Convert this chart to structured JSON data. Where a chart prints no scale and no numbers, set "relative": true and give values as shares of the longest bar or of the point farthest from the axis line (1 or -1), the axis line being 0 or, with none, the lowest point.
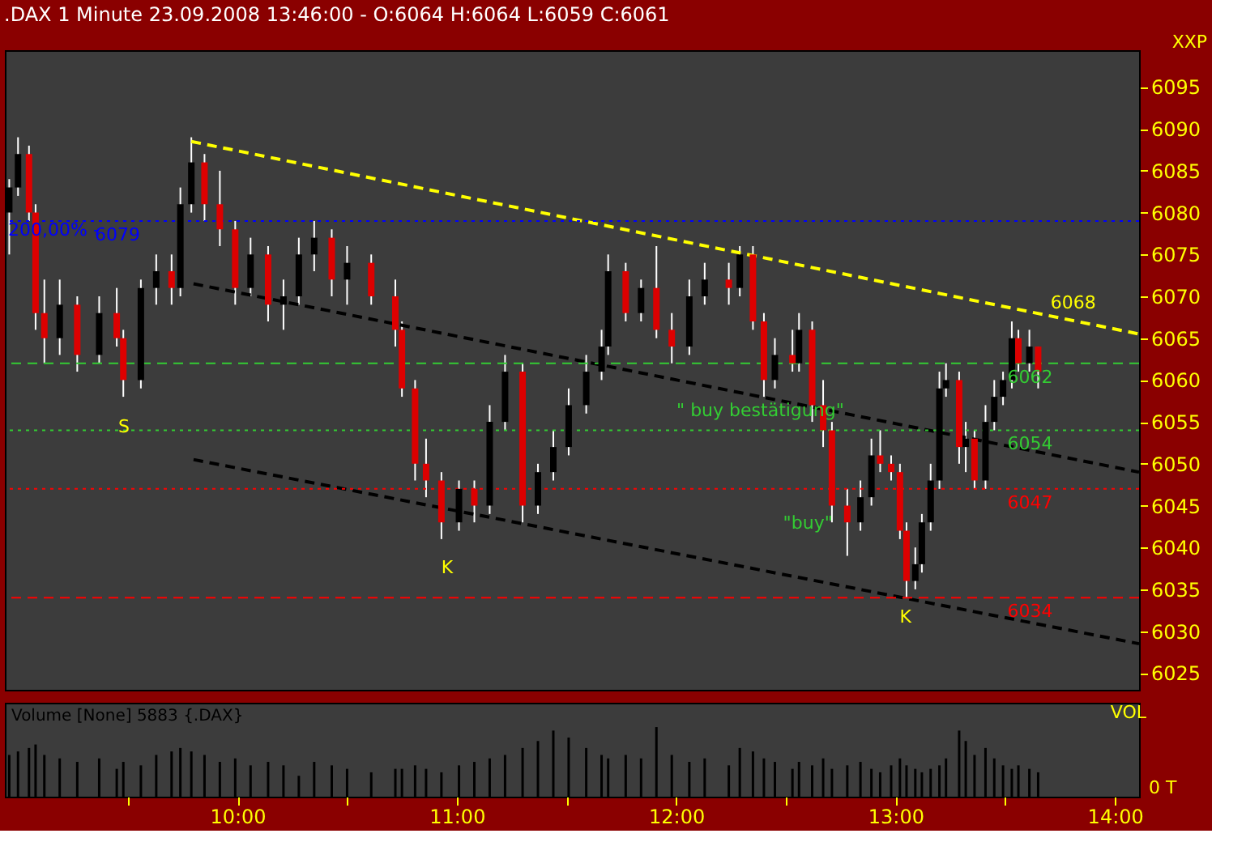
{
  "chart_data": [
    {
      "type": "candlestick",
      "title": ".DAX 1 Minute  23.09.2008 13:46:00 - O:6064 H:6064 L:6059 C:6061",
      "ylabel": "XXP",
      "tick_labels": "y",
      "grid": false,
      "x": [
        8.96,
        9.0,
        9.05,
        9.08,
        9.12,
        9.19,
        9.27,
        9.37,
        9.45,
        9.48,
        9.56,
        9.63,
        9.7,
        9.74,
        9.79,
        9.85,
        9.92,
        9.99,
        10.06,
        10.14,
        10.21,
        10.28,
        10.35,
        10.43,
        10.5,
        10.61,
        10.72,
        10.75,
        10.81,
        10.86,
        10.93,
        11.01,
        11.08,
        11.15,
        11.22,
        11.3,
        11.37,
        11.44,
        11.51,
        11.59,
        11.66,
        11.69,
        11.77,
        11.84,
        11.91,
        11.98,
        12.06,
        12.13,
        12.24,
        12.29,
        12.35,
        12.4,
        12.45,
        12.53,
        12.56,
        12.62,
        12.67,
        12.71,
        12.78,
        12.84,
        12.89,
        12.93,
        12.98,
        13.02,
        13.05,
        13.09,
        13.12,
        13.16,
        13.2,
        13.23,
        13.29,
        13.32,
        13.36,
        13.41,
        13.45,
        13.49,
        13.53,
        13.56,
        13.61,
        13.65
      ],
      "ohlc": [
        [
          6080,
          6084,
          6075,
          6083
        ],
        [
          6083,
          6089,
          6082,
          6087
        ],
        [
          6087,
          6088,
          6079,
          6080
        ],
        [
          6080,
          6081,
          6066,
          6068
        ],
        [
          6068,
          6072,
          6062,
          6065
        ],
        [
          6065,
          6072,
          6063,
          6069
        ],
        [
          6069,
          6070,
          6061,
          6063
        ],
        [
          6063,
          6070,
          6062,
          6068
        ],
        [
          6068,
          6071,
          6064,
          6065
        ],
        [
          6065,
          6066,
          6058,
          6060
        ],
        [
          6060,
          6072,
          6059,
          6071
        ],
        [
          6071,
          6075,
          6069,
          6073
        ],
        [
          6073,
          6075,
          6069,
          6071
        ],
        [
          6071,
          6083,
          6070,
          6081
        ],
        [
          6081,
          6089,
          6080,
          6086
        ],
        [
          6086,
          6087,
          6079,
          6081
        ],
        [
          6081,
          6085,
          6076,
          6078
        ],
        [
          6078,
          6079,
          6069,
          6071
        ],
        [
          6071,
          6077,
          6070,
          6075
        ],
        [
          6075,
          6076,
          6067,
          6069
        ],
        [
          6069,
          6072,
          6066,
          6070
        ],
        [
          6070,
          6077,
          6069,
          6075
        ],
        [
          6075,
          6079,
          6073,
          6077
        ],
        [
          6077,
          6078,
          6070,
          6072
        ],
        [
          6072,
          6076,
          6069,
          6074
        ],
        [
          6074,
          6075,
          6069,
          6070
        ],
        [
          6070,
          6072,
          6064,
          6066
        ],
        [
          6066,
          6067,
          6058,
          6059
        ],
        [
          6059,
          6060,
          6048,
          6050
        ],
        [
          6050,
          6053,
          6046,
          6048
        ],
        [
          6048,
          6049,
          6041,
          6043
        ],
        [
          6043,
          6048,
          6042,
          6047
        ],
        [
          6047,
          6048,
          6043,
          6045
        ],
        [
          6045,
          6057,
          6044,
          6055
        ],
        [
          6055,
          6063,
          6054,
          6061
        ],
        [
          6061,
          6062,
          6043,
          6045
        ],
        [
          6045,
          6050,
          6044,
          6049
        ],
        [
          6049,
          6054,
          6048,
          6052
        ],
        [
          6052,
          6059,
          6051,
          6057
        ],
        [
          6057,
          6063,
          6056,
          6061
        ],
        [
          6061,
          6066,
          6060,
          6064
        ],
        [
          6064,
          6075,
          6063,
          6073
        ],
        [
          6073,
          6074,
          6067,
          6068
        ],
        [
          6068,
          6072,
          6067,
          6071
        ],
        [
          6071,
          6076,
          6065,
          6066
        ],
        [
          6066,
          6068,
          6062,
          6064
        ],
        [
          6064,
          6072,
          6063,
          6070
        ],
        [
          6070,
          6074,
          6069,
          6072
        ],
        [
          6072,
          6074,
          6069,
          6071
        ],
        [
          6071,
          6076,
          6070,
          6075
        ],
        [
          6075,
          6076,
          6066,
          6067
        ],
        [
          6067,
          6068,
          6058,
          6060
        ],
        [
          6060,
          6065,
          6059,
          6063
        ],
        [
          6063,
          6066,
          6061,
          6062
        ],
        [
          6062,
          6068,
          6061,
          6066
        ],
        [
          6066,
          6067,
          6055,
          6057
        ],
        [
          6057,
          6060,
          6052,
          6054
        ],
        [
          6054,
          6055,
          6043,
          6045
        ],
        [
          6045,
          6047,
          6039,
          6043
        ],
        [
          6043,
          6048,
          6042,
          6046
        ],
        [
          6046,
          6053,
          6045,
          6051
        ],
        [
          6051,
          6054,
          6049,
          6050
        ],
        [
          6050,
          6051,
          6048,
          6049
        ],
        [
          6049,
          6050,
          6041,
          6042
        ],
        [
          6042,
          6043,
          6034,
          6036
        ],
        [
          6036,
          6040,
          6035,
          6038
        ],
        [
          6038,
          6044,
          6037,
          6043
        ],
        [
          6043,
          6050,
          6042,
          6048
        ],
        [
          6048,
          6061,
          6047,
          6059
        ],
        [
          6059,
          6062,
          6058,
          6060
        ],
        [
          6060,
          6061,
          6050,
          6052
        ],
        [
          6052,
          6055,
          6049,
          6053
        ],
        [
          6053,
          6054,
          6047,
          6048
        ],
        [
          6048,
          6057,
          6047,
          6055
        ],
        [
          6055,
          6060,
          6054,
          6058
        ],
        [
          6058,
          6061,
          6057,
          6060
        ],
        [
          6060,
          6067,
          6059,
          6065
        ],
        [
          6065,
          6066,
          6061,
          6062
        ],
        [
          6062,
          6066,
          6061,
          6064
        ],
        [
          6064,
          6064,
          6059,
          6061
        ]
      ],
      "series": [
        {
          "type": "line",
          "x": [
            9.79,
            14.11
          ],
          "values": [
            6088.5,
            6065.5
          ],
          "color": "#ffff00",
          "line_style": "dashed"
        },
        {
          "type": "line",
          "x": [
            9.8,
            14.11
          ],
          "values": [
            6071.5,
            6049
          ],
          "color": "#000000",
          "line_style": "dashed"
        },
        {
          "type": "line",
          "x": [
            9.8,
            14.11
          ],
          "values": [
            6050.5,
            6028.5
          ],
          "color": "#000000",
          "line_style": "dashed"
        }
      ],
      "ref_lines": [
        {
          "axis": "y",
          "value": 6079,
          "label": "6079",
          "color": "#0000ff",
          "line_style": "dotted"
        },
        {
          "axis": "y",
          "value": 6062,
          "label": "6062",
          "color": "#33cc33",
          "line_style": "dashed"
        },
        {
          "axis": "y",
          "value": 6054,
          "label": "6054",
          "color": "#33cc33",
          "line_style": "dotted"
        },
        {
          "axis": "y",
          "value": 6047,
          "label": "6047",
          "color": "#ff0000",
          "line_style": "dotted"
        },
        {
          "axis": "y",
          "value": 6034,
          "label": "6034",
          "color": "#ff0000",
          "line_style": "dashed"
        }
      ],
      "annotations": [
        "S",
        "K",
        "K",
        "\" buy bestätigung\"",
        "\"buy\"",
        "6068",
        "200,00% -"
      ],
      "xlim": [
        8.94,
        14.11
      ],
      "ylim": [
        6023,
        6099.4
      ],
      "yticks": [
        6025,
        6030,
        6035,
        6040,
        6045,
        6050,
        6055,
        6060,
        6065,
        6070,
        6075,
        6080,
        6085,
        6090,
        6095
      ]
    },
    {
      "type": "bar",
      "title": "Volume [None] 5883 {.DAX}",
      "ylabel": "VOL",
      "relative": true,
      "tick_labels": "x",
      "color": "#000000",
      "annotations": [
        "0 T"
      ],
      "x": [
        8.96,
        9.0,
        9.05,
        9.08,
        9.12,
        9.19,
        9.27,
        9.37,
        9.45,
        9.48,
        9.56,
        9.63,
        9.7,
        9.74,
        9.79,
        9.85,
        9.92,
        9.99,
        10.06,
        10.14,
        10.21,
        10.28,
        10.35,
        10.43,
        10.5,
        10.61,
        10.72,
        10.75,
        10.81,
        10.86,
        10.93,
        11.01,
        11.08,
        11.15,
        11.22,
        11.3,
        11.37,
        11.44,
        11.51,
        11.59,
        11.66,
        11.69,
        11.77,
        11.84,
        11.91,
        11.98,
        12.06,
        12.13,
        12.24,
        12.29,
        12.35,
        12.4,
        12.45,
        12.53,
        12.56,
        12.62,
        12.67,
        12.71,
        12.78,
        12.84,
        12.89,
        12.93,
        12.98,
        13.02,
        13.05,
        13.09,
        13.12,
        13.16,
        13.2,
        13.23,
        13.29,
        13.32,
        13.36,
        13.41,
        13.45,
        13.49,
        13.53,
        13.56,
        13.61,
        13.65
      ],
      "values": [
        0.6,
        0.65,
        0.7,
        0.75,
        0.6,
        0.55,
        0.5,
        0.55,
        0.4,
        0.5,
        0.45,
        0.6,
        0.65,
        0.7,
        0.65,
        0.6,
        0.5,
        0.55,
        0.45,
        0.5,
        0.45,
        0.3,
        0.5,
        0.45,
        0.4,
        0.35,
        0.4,
        0.4,
        0.45,
        0.4,
        0.35,
        0.45,
        0.5,
        0.55,
        0.6,
        0.7,
        0.8,
        0.95,
        0.85,
        0.7,
        0.6,
        0.55,
        0.6,
        0.55,
        1.0,
        0.6,
        0.5,
        0.55,
        0.45,
        0.7,
        0.65,
        0.55,
        0.5,
        0.4,
        0.5,
        0.45,
        0.55,
        0.4,
        0.45,
        0.5,
        0.4,
        0.35,
        0.45,
        0.55,
        0.45,
        0.4,
        0.35,
        0.4,
        0.45,
        0.55,
        0.95,
        0.8,
        0.6,
        0.7,
        0.55,
        0.45,
        0.4,
        0.45,
        0.4,
        0.35
      ],
      "xlim": [
        8.94,
        14.11
      ],
      "xticks": [
        {
          "value": 9.5,
          "label": null
        },
        {
          "value": 10,
          "label": "10:00"
        },
        {
          "value": 10.5,
          "label": null
        },
        {
          "value": 11,
          "label": "11:00"
        },
        {
          "value": 11.5,
          "label": null
        },
        {
          "value": 12,
          "label": "12:00"
        },
        {
          "value": 12.5,
          "label": null
        },
        {
          "value": 13,
          "label": "13:00"
        },
        {
          "value": 13.5,
          "label": null
        },
        {
          "value": 14,
          "label": "14:00"
        }
      ]
    }
  ]
}
